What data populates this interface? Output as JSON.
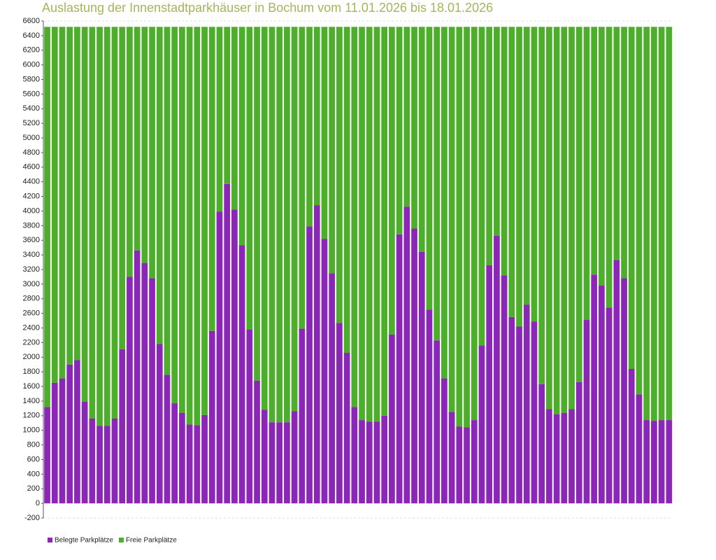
{
  "chart_data": {
    "type": "stacked_bar",
    "title": "Auslastung der Innenstadtparkhäuser in Bochum vom 11.01.2026 bis 18.01.2026",
    "categories": [
      null,
      null,
      null,
      null,
      null,
      null,
      null,
      null,
      null,
      null,
      null,
      null,
      null,
      null,
      null,
      null,
      null,
      null,
      null,
      null,
      null,
      null,
      null,
      null,
      null,
      null,
      null,
      null,
      null,
      null,
      null,
      null,
      null,
      null,
      null,
      null,
      null,
      null,
      null,
      null,
      null,
      null,
      null,
      null,
      null,
      null,
      null,
      null,
      null,
      null,
      null,
      null,
      null,
      null,
      null,
      null,
      null,
      null,
      null,
      null,
      null,
      null,
      null,
      null,
      null,
      null,
      null,
      null,
      null,
      null,
      null,
      null,
      null,
      null,
      null,
      null,
      null,
      null,
      null,
      null,
      null,
      null,
      null,
      null
    ],
    "series": [
      {
        "name": "Belegte Parkplätze",
        "color": "#8a27b6",
        "values": [
          1320,
          1650,
          1710,
          1900,
          1960,
          1390,
          1160,
          1060,
          1060,
          1160,
          2110,
          3100,
          3460,
          3290,
          3080,
          2180,
          1760,
          1370,
          1240,
          1080,
          1070,
          1210,
          2360,
          3990,
          4370,
          4020,
          3530,
          2380,
          1680,
          1280,
          1110,
          1110,
          1110,
          1260,
          2390,
          3790,
          4080,
          3620,
          3150,
          2470,
          2060,
          1320,
          1140,
          1120,
          1120,
          1200,
          2310,
          3680,
          4060,
          3760,
          3440,
          2650,
          2230,
          1710,
          1250,
          1050,
          1040,
          1140,
          2160,
          3260,
          3660,
          3120,
          2550,
          2420,
          2720,
          2490,
          1630,
          1290,
          1220,
          1240,
          1290,
          1660,
          2510,
          3130,
          2980,
          2680,
          3330,
          3080,
          1840,
          1490,
          1140,
          1130,
          1140,
          1140
        ]
      },
      {
        "name": "Freie Parkplätze",
        "color": "#4cae2b",
        "values": [
          5200,
          4870,
          4810,
          4620,
          4560,
          5130,
          5360,
          5460,
          5460,
          5360,
          4410,
          3420,
          3060,
          3230,
          3440,
          4340,
          4760,
          5150,
          5280,
          5440,
          5450,
          5310,
          4160,
          2530,
          2150,
          2500,
          2990,
          4140,
          4840,
          5240,
          5410,
          5410,
          5410,
          5260,
          4130,
          2730,
          2440,
          2900,
          3370,
          4050,
          4460,
          5200,
          5380,
          5400,
          5400,
          5320,
          4210,
          2840,
          2460,
          2760,
          3080,
          3870,
          4290,
          4810,
          5270,
          5470,
          5480,
          5380,
          4360,
          3260,
          2860,
          3400,
          3970,
          4100,
          3800,
          4030,
          4890,
          5230,
          5300,
          5280,
          5230,
          4860,
          4010,
          3390,
          3540,
          3840,
          3190,
          3440,
          4680,
          5030,
          5380,
          5390,
          5380,
          5380
        ]
      }
    ],
    "ylim": [
      -200,
      6600
    ],
    "yticks": [
      -200,
      0,
      200,
      400,
      600,
      800,
      1000,
      1200,
      1400,
      1600,
      1800,
      2000,
      2200,
      2400,
      2600,
      2800,
      3000,
      3200,
      3400,
      3600,
      3800,
      4000,
      4200,
      4400,
      4600,
      4800,
      5000,
      5200,
      5400,
      5600,
      5800,
      6000,
      6200,
      6400,
      6600
    ],
    "grid": false,
    "legend": "bottom-left"
  }
}
